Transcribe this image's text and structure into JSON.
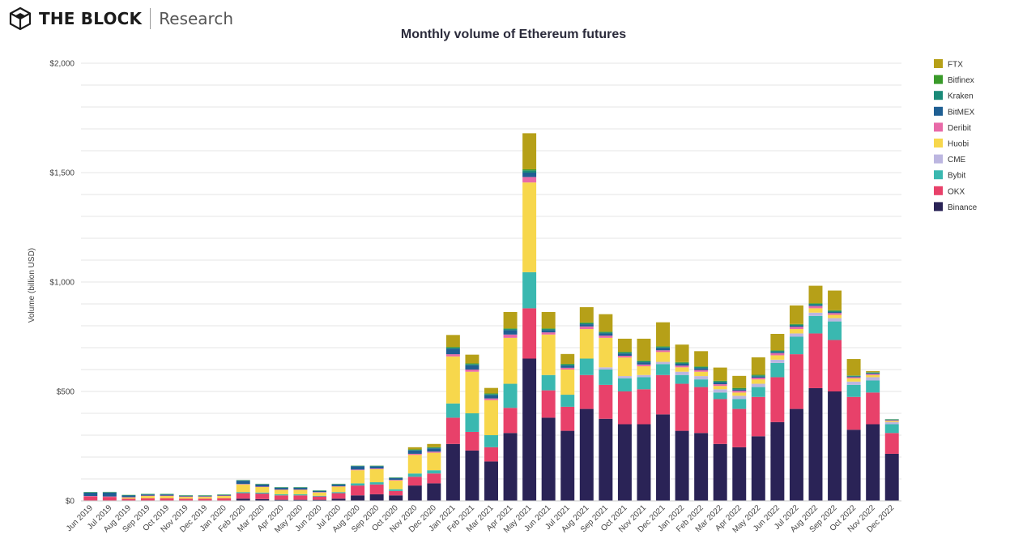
{
  "brand": {
    "name": "THE BLOCK",
    "sub": "Research",
    "logo_icon": "cube-logo-icon"
  },
  "chart_data": {
    "type": "bar",
    "stacked": true,
    "title": "Monthly volume of Ethereum futures",
    "xlabel": "",
    "ylabel": "Volume (billion USD)",
    "ylim": [
      0,
      2000
    ],
    "y_ticks": [
      0,
      500,
      1000,
      1500,
      2000
    ],
    "y_tick_labels": [
      "$0",
      "$500",
      "$1,000",
      "$1,500",
      "$2,000"
    ],
    "grid": true,
    "legend_position": "right",
    "categories": [
      "Jun 2019",
      "Jul 2019",
      "Aug 2019",
      "Sep 2019",
      "Oct 2019",
      "Nov 2019",
      "Dec 2019",
      "Jan 2020",
      "Feb 2020",
      "Mar 2020",
      "Apr 2020",
      "May 2020",
      "Jun 2020",
      "Jul 2020",
      "Aug 2020",
      "Sep 2020",
      "Oct 2020",
      "Nov 2020",
      "Dec 2020",
      "Jan 2021",
      "Feb 2021",
      "Mar 2021",
      "Apr 2021",
      "May 2021",
      "Jun 2021",
      "Jul 2021",
      "Aug 2021",
      "Sep 2021",
      "Oct 2021",
      "Nov 2021",
      "Dec 2021",
      "Jan 2022",
      "Feb 2022",
      "Mar 2022",
      "Apr 2022",
      "May 2022",
      "Jun 2022",
      "Jul 2022",
      "Aug 2022",
      "Sep 2022",
      "Oct 2022",
      "Nov 2022",
      "Dec 2022"
    ],
    "series": [
      {
        "name": "Binance",
        "color": "#2a2356",
        "values": [
          0,
          0,
          0,
          0,
          0,
          0,
          0,
          0,
          10,
          8,
          5,
          5,
          5,
          10,
          25,
          30,
          25,
          70,
          80,
          260,
          230,
          180,
          310,
          650,
          380,
          320,
          420,
          375,
          350,
          350,
          395,
          320,
          310,
          260,
          245,
          295,
          360,
          420,
          515,
          500,
          325,
          350,
          215
        ]
      },
      {
        "name": "OKX",
        "color": "#e8416a",
        "values": [
          20,
          18,
          10,
          12,
          12,
          10,
          10,
          12,
          25,
          25,
          20,
          20,
          15,
          25,
          45,
          45,
          20,
          40,
          45,
          120,
          85,
          65,
          115,
          230,
          125,
          110,
          155,
          155,
          150,
          160,
          180,
          215,
          210,
          205,
          175,
          180,
          205,
          250,
          250,
          235,
          150,
          145,
          95
        ]
      },
      {
        "name": "Bybit",
        "color": "#3ab8b0",
        "values": [
          0,
          0,
          0,
          0,
          0,
          0,
          0,
          0,
          5,
          5,
          5,
          5,
          3,
          5,
          10,
          10,
          8,
          15,
          15,
          65,
          85,
          55,
          110,
          165,
          70,
          55,
          75,
          70,
          60,
          55,
          50,
          40,
          35,
          30,
          45,
          45,
          65,
          80,
          80,
          85,
          55,
          55,
          40
        ]
      },
      {
        "name": "CME",
        "color": "#bcb6e0",
        "values": [
          0,
          0,
          0,
          0,
          0,
          0,
          0,
          0,
          0,
          0,
          0,
          0,
          0,
          0,
          0,
          0,
          0,
          0,
          0,
          0,
          0,
          0,
          0,
          0,
          0,
          0,
          0,
          10,
          10,
          10,
          10,
          15,
          15,
          15,
          15,
          15,
          15,
          15,
          15,
          15,
          15,
          15,
          10
        ]
      },
      {
        "name": "Huobi",
        "color": "#f7d74c",
        "values": [
          0,
          0,
          5,
          10,
          10,
          8,
          8,
          10,
          35,
          25,
          20,
          20,
          15,
          25,
          60,
          60,
          40,
          85,
          80,
          215,
          190,
          160,
          210,
          410,
          185,
          115,
          135,
          135,
          85,
          40,
          45,
          20,
          20,
          15,
          15,
          20,
          20,
          20,
          20,
          15,
          15,
          10,
          5
        ]
      },
      {
        "name": "Deribit",
        "color": "#e86aa8",
        "values": [
          2,
          2,
          2,
          2,
          2,
          2,
          2,
          2,
          2,
          2,
          2,
          2,
          2,
          2,
          3,
          3,
          3,
          5,
          5,
          10,
          10,
          8,
          15,
          25,
          10,
          8,
          12,
          10,
          8,
          8,
          8,
          8,
          8,
          8,
          8,
          8,
          10,
          10,
          10,
          8,
          5,
          5,
          3
        ]
      },
      {
        "name": "BitMEX",
        "color": "#1f5f93",
        "values": [
          15,
          18,
          7,
          5,
          5,
          3,
          2,
          2,
          15,
          10,
          8,
          8,
          5,
          8,
          15,
          10,
          8,
          15,
          15,
          25,
          20,
          15,
          20,
          20,
          10,
          10,
          10,
          10,
          10,
          10,
          10,
          8,
          8,
          8,
          5,
          5,
          5,
          5,
          5,
          5,
          3,
          3,
          2
        ]
      },
      {
        "name": "Kraken",
        "color": "#1a8a78",
        "values": [
          2,
          2,
          2,
          2,
          2,
          2,
          2,
          2,
          2,
          2,
          2,
          2,
          2,
          2,
          2,
          2,
          2,
          3,
          3,
          5,
          5,
          5,
          5,
          10,
          5,
          5,
          5,
          5,
          5,
          5,
          5,
          5,
          5,
          5,
          5,
          5,
          5,
          5,
          5,
          5,
          3,
          3,
          2
        ]
      },
      {
        "name": "Bitfinex",
        "color": "#3a9a2a",
        "values": [
          1,
          1,
          1,
          1,
          1,
          1,
          1,
          1,
          1,
          1,
          1,
          1,
          1,
          1,
          1,
          1,
          1,
          2,
          2,
          3,
          3,
          3,
          3,
          5,
          3,
          3,
          3,
          3,
          3,
          3,
          3,
          3,
          3,
          3,
          3,
          3,
          3,
          3,
          3,
          3,
          2,
          2,
          1
        ]
      },
      {
        "name": "FTX",
        "color": "#b6a018",
        "values": [
          0,
          0,
          0,
          0,
          0,
          0,
          0,
          0,
          0,
          0,
          0,
          0,
          0,
          0,
          0,
          0,
          0,
          10,
          15,
          55,
          40,
          25,
          75,
          165,
          75,
          45,
          70,
          80,
          60,
          100,
          110,
          80,
          70,
          60,
          55,
          80,
          75,
          85,
          80,
          90,
          75,
          5,
          0
        ]
      }
    ]
  }
}
